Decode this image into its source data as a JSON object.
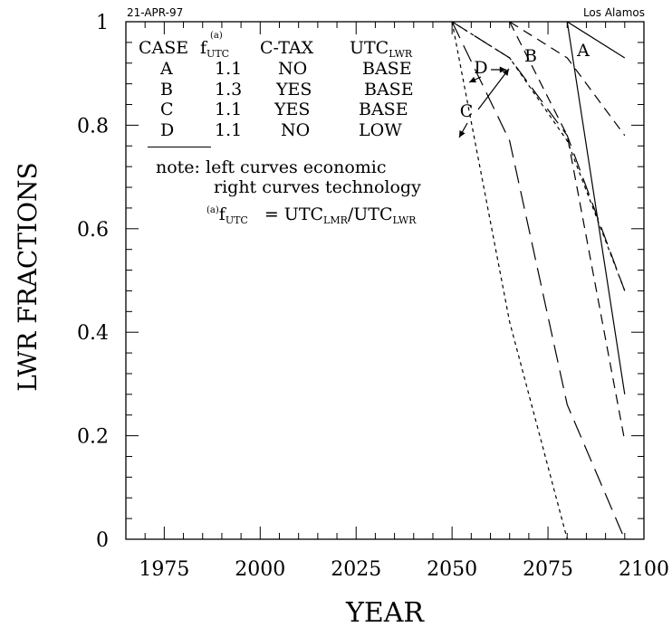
{
  "header": {
    "date": "21-APR-97",
    "lab": "Los Alamos"
  },
  "legend": {
    "headers": [
      "CASE",
      "f",
      "C-TAX",
      "UTC"
    ],
    "f_sub": "UTC",
    "f_sup": "(a)",
    "utc_sub": "LWR",
    "rows": [
      {
        "case": "A",
        "f": "1.1",
        "ctax": "NO",
        "utc": "BASE"
      },
      {
        "case": "B",
        "f": "1.3",
        "ctax": "YES",
        "utc": "BASE"
      },
      {
        "case": "C",
        "f": "1.1",
        "ctax": "YES",
        "utc": "BASE"
      },
      {
        "case": "D",
        "f": "1.1",
        "ctax": "NO",
        "utc": "LOW"
      }
    ]
  },
  "notes": {
    "line1": "note: left curves economic",
    "line2": "right curves technology",
    "footnote_sup": "(a)",
    "footnote_f": "f",
    "footnote_f_sub": "UTC",
    "footnote_eq": "= UTC",
    "footnote_num_sub": "LMR",
    "footnote_div": "/UTC",
    "footnote_den_sub": "LWR"
  },
  "chart_data": {
    "type": "line",
    "xlabel": "YEAR",
    "ylabel": "LWR FRACTIONS",
    "xlim": [
      1965,
      2100
    ],
    "ylim": [
      0,
      1
    ],
    "xticks": [
      1975,
      2000,
      2025,
      2050,
      2075,
      2100
    ],
    "yticks": [
      0,
      0.2,
      0.4,
      0.6,
      0.8,
      1
    ],
    "ytick_labels": [
      "0",
      "0.2",
      "0.4",
      "0.6",
      "0.8",
      "1"
    ],
    "grid": false,
    "series": [
      {
        "name": "A",
        "dash": "solid",
        "x": [
          2080,
          2095
        ],
        "y": [
          1.0,
          0.28
        ]
      },
      {
        "name": "A",
        "dash": "solid",
        "x": [
          2080,
          2095
        ],
        "y": [
          1.0,
          0.93
        ]
      },
      {
        "name": "B",
        "dash": "long",
        "x": [
          2065,
          2080,
          2095
        ],
        "y": [
          1.0,
          0.78,
          0.19
        ]
      },
      {
        "name": "B",
        "dash": "long",
        "x": [
          2065,
          2080,
          2095
        ],
        "y": [
          1.0,
          0.93,
          0.78
        ]
      },
      {
        "name": "D",
        "dash": "longer",
        "x": [
          2050,
          2065,
          2080,
          2095
        ],
        "y": [
          1.0,
          0.77,
          0.26,
          0.0
        ]
      },
      {
        "name": "D",
        "dash": "longer",
        "x": [
          2050,
          2065,
          2080,
          2095
        ],
        "y": [
          1.0,
          0.93,
          0.78,
          0.48
        ]
      },
      {
        "name": "C",
        "dash": "short",
        "x": [
          2050,
          2065,
          2080
        ],
        "y": [
          1.0,
          0.42,
          0.0
        ]
      },
      {
        "name": "C",
        "dash": "short",
        "x": [
          2050,
          2065,
          2080,
          2095
        ],
        "y": [
          1.0,
          0.93,
          0.77,
          0.48
        ]
      }
    ],
    "annotations": [
      {
        "text": "A"
      },
      {
        "text": "B"
      },
      {
        "text": "D"
      },
      {
        "text": "C"
      }
    ]
  }
}
